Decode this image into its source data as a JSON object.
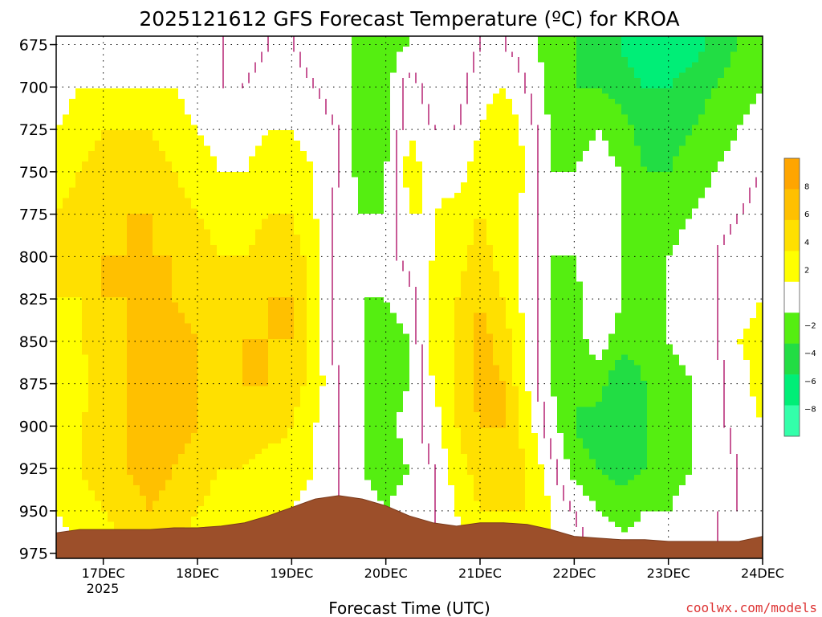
{
  "chart_data": {
    "type": "heatmap",
    "title": "2025121612 GFS Forecast Temperature (ºC) for KROA",
    "xlabel": "Forecast Time (UTC)",
    "ylabel": "",
    "x_ticks": [
      "17DEC",
      "18DEC",
      "19DEC",
      "20DEC",
      "21DEC",
      "22DEC",
      "23DEC",
      "24DEC"
    ],
    "x_year": "2025",
    "xlim_days": [
      16.5,
      24.0
    ],
    "y_ticks": [
      675,
      700,
      725,
      750,
      775,
      800,
      825,
      850,
      875,
      900,
      925,
      950,
      975
    ],
    "ylim_hpa": [
      670,
      978
    ],
    "colorbar": {
      "bins": [
        {
          "min": -10,
          "max": -8,
          "color": "#33ffaa"
        },
        {
          "min": -8,
          "max": -6,
          "color": "#00ee77"
        },
        {
          "min": -6,
          "max": -4,
          "color": "#22dd44"
        },
        {
          "min": -4,
          "max": -2,
          "color": "#55ee11"
        },
        {
          "min": -2,
          "max": 2,
          "color": "#ffffff"
        },
        {
          "min": 2,
          "max": 4,
          "color": "#ffff00"
        },
        {
          "min": 4,
          "max": 6,
          "color": "#ffe000"
        },
        {
          "min": 6,
          "max": 8,
          "color": "#ffc000"
        },
        {
          "min": 8,
          "max": 10,
          "color": "#ffa500"
        }
      ],
      "tick_labels": [
        "8",
        "6",
        "4",
        "2",
        "−2",
        "−4",
        "−6",
        "−8"
      ],
      "tick_values": [
        8,
        6,
        4,
        2,
        -2,
        -4,
        -6,
        -8
      ]
    },
    "time_columns_days": [
      16.5,
      16.75,
      17.0,
      17.25,
      17.5,
      17.75,
      18.0,
      18.25,
      18.5,
      18.75,
      19.0,
      19.25,
      19.5,
      19.75,
      20.0,
      20.25,
      20.5,
      20.75,
      21.0,
      21.25,
      21.5,
      21.75,
      22.0,
      22.25,
      22.5,
      22.75,
      23.0,
      23.25,
      23.5,
      23.75,
      24.0
    ],
    "pressure_levels_hpa": [
      675,
      700,
      725,
      750,
      775,
      800,
      825,
      850,
      875,
      900,
      925,
      950,
      975
    ],
    "temperature_grid_c": [
      [
        0,
        1,
        1,
        1,
        1,
        0,
        0,
        0,
        -1,
        0,
        0,
        -1,
        -1,
        -3,
        -3,
        -2,
        -1,
        -1,
        0,
        0,
        -1,
        -3,
        -4,
        -5,
        -6,
        -8,
        -8,
        -7,
        -5,
        -4,
        -3
      ],
      [
        1,
        2,
        2,
        2,
        2,
        2,
        1,
        0,
        0,
        1,
        1,
        0,
        -1,
        -3,
        -3,
        1,
        -1,
        -1,
        1,
        2,
        0,
        -3,
        -4,
        -4,
        -5,
        -6,
        -6,
        -5,
        -4,
        -3,
        -2
      ],
      [
        2,
        3,
        4,
        4,
        4,
        3,
        2,
        1,
        1,
        2,
        2,
        1,
        0,
        -3,
        -3,
        2,
        0,
        0,
        2,
        4,
        1,
        -2,
        -3,
        -2,
        -3,
        -5,
        -5,
        -4,
        -3,
        -2,
        -1
      ],
      [
        3,
        4,
        5,
        5,
        5,
        4,
        3,
        2,
        2,
        3,
        3,
        2,
        0,
        -3,
        -2,
        3,
        1,
        1,
        3,
        4,
        2,
        -2,
        -2,
        -1,
        -2,
        -4,
        -4,
        -3,
        -2,
        -1,
        0
      ],
      [
        4,
        5,
        5,
        6,
        6,
        5,
        4,
        3,
        3,
        4,
        4,
        2,
        -1,
        -2,
        -2,
        2,
        2,
        3,
        4,
        3,
        1,
        -2,
        -2,
        0,
        -2,
        -3,
        -3,
        -2,
        -1,
        0,
        1
      ],
      [
        4,
        5,
        6,
        6,
        6,
        6,
        5,
        4,
        4,
        5,
        5,
        3,
        -1,
        -2,
        -1,
        1,
        2,
        3,
        5,
        3,
        1,
        -2,
        -2,
        0,
        -2,
        -3,
        -2,
        -1,
        0,
        1,
        2
      ],
      [
        4,
        4,
        6,
        6,
        6,
        6,
        5,
        5,
        5,
        6,
        6,
        3,
        -1,
        -2,
        -2,
        -1,
        3,
        4,
        6,
        4,
        1,
        -2,
        -3,
        0,
        -2,
        -3,
        -2,
        -1,
        0,
        1,
        2
      ],
      [
        3,
        4,
        5,
        6,
        6,
        7,
        6,
        5,
        6,
        6,
        6,
        3,
        -1,
        -2,
        -3,
        -2,
        3,
        4,
        7,
        5,
        2,
        -2,
        -3,
        -1,
        -3,
        -3,
        -2,
        -1,
        0,
        2,
        3
      ],
      [
        2,
        3,
        5,
        6,
        6,
        7,
        6,
        5,
        6,
        6,
        5,
        3,
        0,
        -2,
        -3,
        -2,
        2,
        4,
        7,
        6,
        2,
        -2,
        -4,
        -3,
        -6,
        -4,
        -3,
        -2,
        -1,
        1,
        3
      ],
      [
        2,
        4,
        5,
        6,
        7,
        7,
        6,
        5,
        5,
        5,
        4,
        2,
        0,
        -2,
        -3,
        -1,
        1,
        4,
        6,
        6,
        3,
        -1,
        -4,
        -5,
        -6,
        -4,
        -3,
        -2,
        -1,
        1,
        2
      ],
      [
        3,
        4,
        5,
        6,
        7,
        6,
        5,
        4,
        4,
        3,
        3,
        2,
        0,
        -2,
        -3,
        -2,
        0,
        3,
        5,
        5,
        4,
        1,
        -3,
        -4,
        -5,
        -4,
        -3,
        -2,
        -1,
        0,
        1
      ],
      [
        2,
        3,
        4,
        5,
        6,
        5,
        4,
        3,
        3,
        3,
        2,
        1,
        0,
        -1,
        -2,
        -1,
        0,
        2,
        4,
        4,
        4,
        2,
        0,
        -2,
        -3,
        -2,
        -2,
        -1,
        0,
        0,
        1
      ],
      [
        1,
        2,
        3,
        4,
        4,
        4,
        3,
        2,
        2,
        2,
        2,
        1,
        0,
        0,
        -1,
        -1,
        0,
        1,
        3,
        3,
        3,
        2,
        1,
        0,
        -1,
        -1,
        -1,
        0,
        0,
        0,
        1
      ]
    ],
    "terrain_surface_hpa": [
      963,
      961,
      961,
      961,
      961,
      960,
      960,
      959,
      957,
      953,
      948,
      943,
      941,
      943,
      947,
      953,
      957,
      959,
      957,
      957,
      958,
      961,
      965,
      966,
      967,
      967,
      968,
      968,
      968,
      968,
      965
    ],
    "credit": "coolwx.com/models"
  }
}
